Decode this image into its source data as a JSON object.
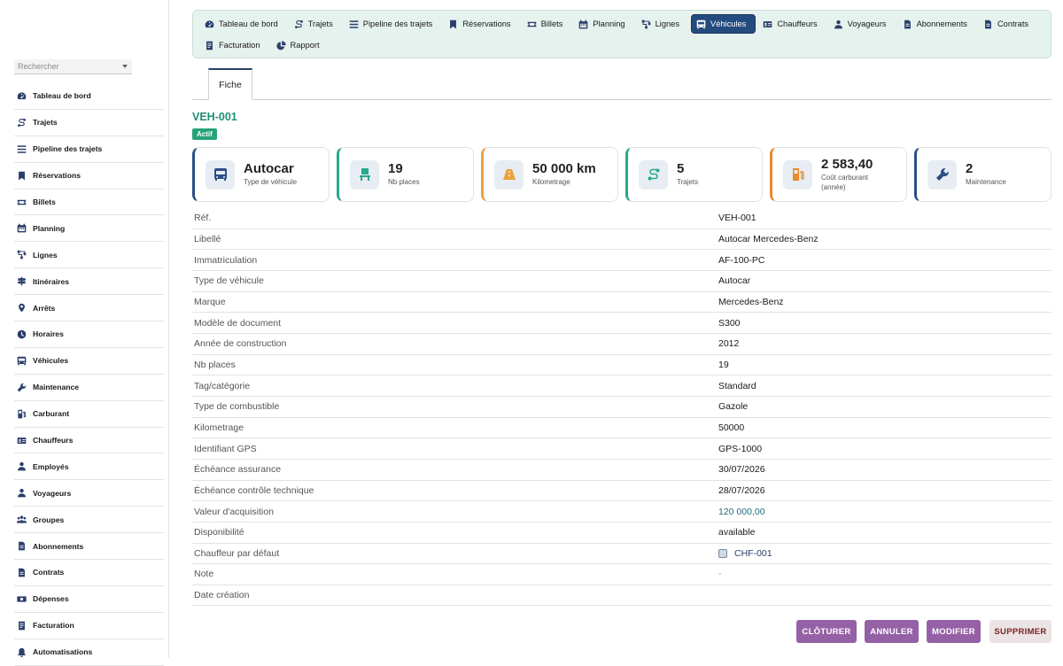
{
  "sidebar": {
    "search_placeholder": "Rechercher",
    "items": [
      {
        "label": "Tableau de bord",
        "icon": "dashboard-icon"
      },
      {
        "label": "Trajets",
        "icon": "route-icon"
      },
      {
        "label": "Pipeline des trajets",
        "icon": "list-icon"
      },
      {
        "label": "Réservations",
        "icon": "bookmark-icon"
      },
      {
        "label": "Billets",
        "icon": "ticket-icon"
      },
      {
        "label": "Planning",
        "icon": "calendar-icon"
      },
      {
        "label": "Lignes",
        "icon": "network-icon"
      },
      {
        "label": "Itinéraires",
        "icon": "signpost-icon"
      },
      {
        "label": "Arrêts",
        "icon": "map-pin-icon"
      },
      {
        "label": "Horaires",
        "icon": "clock-icon"
      },
      {
        "label": "Véhicules",
        "icon": "bus-icon"
      },
      {
        "label": "Maintenance",
        "icon": "wrench-icon"
      },
      {
        "label": "Carburant",
        "icon": "fuel-icon"
      },
      {
        "label": "Chauffeurs",
        "icon": "id-card-icon"
      },
      {
        "label": "Employés",
        "icon": "user-icon"
      },
      {
        "label": "Voyageurs",
        "icon": "user-icon"
      },
      {
        "label": "Groupes",
        "icon": "users-icon"
      },
      {
        "label": "Abonnements",
        "icon": "file-icon"
      },
      {
        "label": "Contrats",
        "icon": "file-icon"
      },
      {
        "label": "Dépenses",
        "icon": "money-icon"
      },
      {
        "label": "Facturation",
        "icon": "invoice-icon"
      },
      {
        "label": "Automatisations",
        "icon": "bell-icon"
      }
    ]
  },
  "topnav": {
    "row1": [
      {
        "label": "Tableau de bord",
        "icon": "dashboard-icon",
        "active": false
      },
      {
        "label": "Trajets",
        "icon": "route-icon",
        "active": false
      },
      {
        "label": "Pipeline des trajets",
        "icon": "list-icon",
        "active": false
      },
      {
        "label": "Réservations",
        "icon": "bookmark-icon",
        "active": false
      },
      {
        "label": "Billets",
        "icon": "ticket-icon",
        "active": false
      },
      {
        "label": "Planning",
        "icon": "calendar-icon",
        "active": false
      },
      {
        "label": "Lignes",
        "icon": "network-icon",
        "active": false
      },
      {
        "label": "Véhicules",
        "icon": "bus-icon",
        "active": true
      },
      {
        "label": "Chauffeurs",
        "icon": "id-card-icon",
        "active": false
      },
      {
        "label": "Voyageurs",
        "icon": "user-icon",
        "active": false
      },
      {
        "label": "Abonnements",
        "icon": "file-icon",
        "active": false
      },
      {
        "label": "Contrats",
        "icon": "file-icon",
        "active": false
      }
    ],
    "row2": [
      {
        "label": "Facturation",
        "icon": "invoice-icon",
        "active": false
      },
      {
        "label": "Rapport",
        "icon": "pie-chart-icon",
        "active": false
      }
    ]
  },
  "tabs": {
    "fiche": "Fiche"
  },
  "record": {
    "ref": "VEH-001",
    "status": "Actif"
  },
  "cards": [
    {
      "value": "Autocar",
      "label": "Type de véhicule",
      "label2": "",
      "icon": "bus-icon",
      "accent": "#2b4f86"
    },
    {
      "value": "19",
      "label": "Nb places",
      "label2": "",
      "icon": "seat-icon",
      "accent": "#2aa88a"
    },
    {
      "value": "50 000 km",
      "label": "Kilometrage",
      "label2": "",
      "icon": "road-icon",
      "accent": "#e9a23b"
    },
    {
      "value": "5",
      "label": "Trajets",
      "label2": "",
      "icon": "route-icon",
      "accent": "#2aa88a"
    },
    {
      "value": "2 583,40",
      "label": "Coût carburant",
      "label2": "(année)",
      "icon": "fuel-icon",
      "accent": "#e98a2b"
    },
    {
      "value": "2",
      "label": "Maintenance",
      "label2": "",
      "icon": "wrench-icon",
      "accent": "#2b4f86"
    }
  ],
  "fields": [
    {
      "key": "Réf.",
      "value": "VEH-001"
    },
    {
      "key": "Libellé",
      "value": "Autocar Mercedes-Benz"
    },
    {
      "key": "Immatriculation",
      "value": "AF-100-PC"
    },
    {
      "key": "Type de véhicule",
      "value": "Autocar"
    },
    {
      "key": "Marque",
      "value": "Mercedes-Benz"
    },
    {
      "key": "Modèle de document",
      "value": "S300"
    },
    {
      "key": "Année de construction",
      "value": "2012"
    },
    {
      "key": "Nb places",
      "value": "19"
    },
    {
      "key": "Tag/catégorie",
      "value": "Standard"
    },
    {
      "key": "Type de combustible",
      "value": "Gazole"
    },
    {
      "key": "Kilometrage",
      "value": "50000"
    },
    {
      "key": "Identifiant GPS",
      "value": "GPS-1000"
    },
    {
      "key": "Échéance assurance",
      "value": "30/07/2026"
    },
    {
      "key": "Échéance contrôle technique",
      "value": "28/07/2026"
    },
    {
      "key": "Valeur d'acquisition",
      "value": "120 000,00",
      "style": "money"
    },
    {
      "key": "Disponibilité",
      "value": "available"
    },
    {
      "key": "Chauffeur par défaut",
      "value": "CHF-001",
      "style": "link"
    },
    {
      "key": "Note",
      "value": "-",
      "style": "muted"
    },
    {
      "key": "Date création",
      "value": ""
    }
  ],
  "actions": {
    "close": "CLÔTURER",
    "cancel": "ANNULER",
    "edit": "MODIFIER",
    "delete": "SUPPRIMER"
  },
  "colors": {
    "accent": "#244b7e",
    "status": "#27a37a",
    "action": "#9561a6",
    "title": "#1f8f76"
  }
}
